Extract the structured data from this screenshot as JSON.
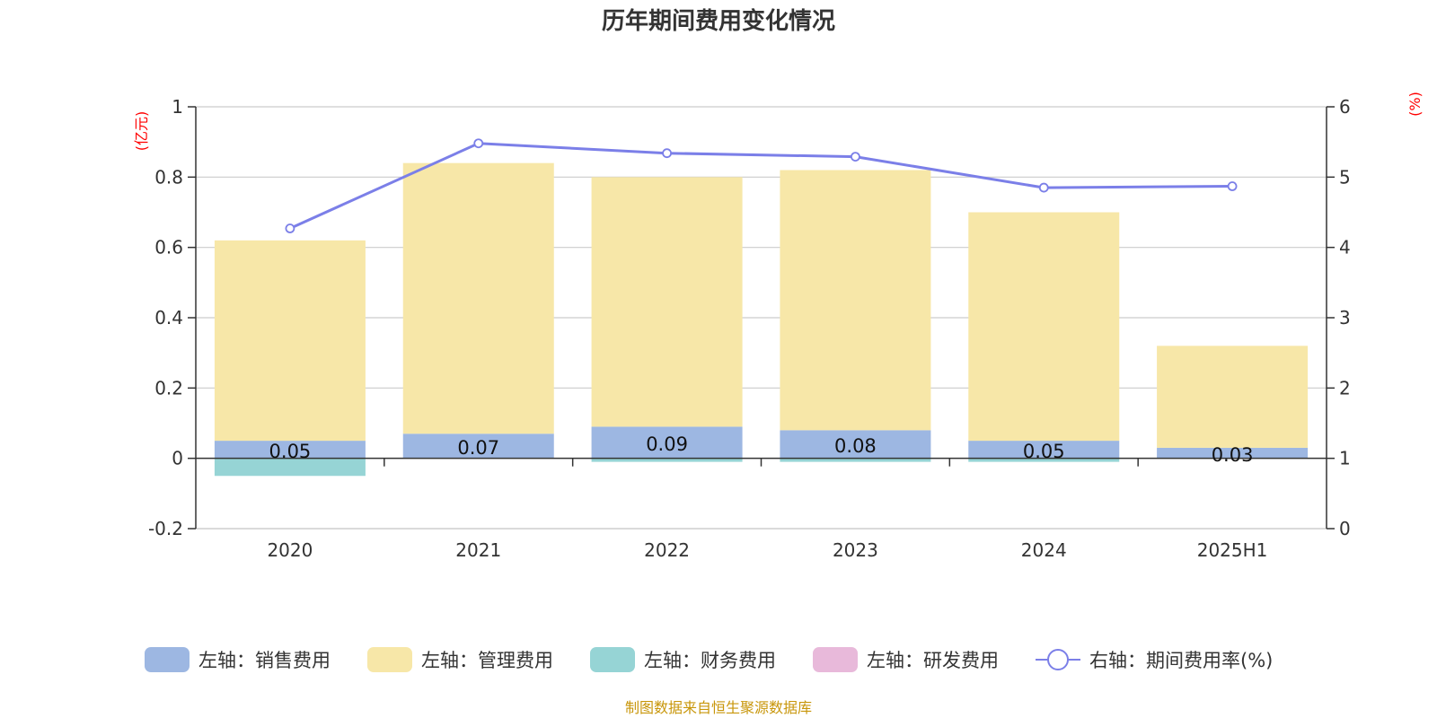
{
  "chart_data": {
    "type": "bar",
    "title": "历年期间费用变化情况",
    "categories": [
      "2020",
      "2021",
      "2022",
      "2023",
      "2024",
      "2025H1"
    ],
    "left_axis": {
      "unit": "(亿元)",
      "ylim": [
        -0.2,
        1
      ],
      "ticks": [
        "1",
        "0.8",
        "0.6",
        "0.4",
        "0.2",
        "0",
        "-0.2"
      ]
    },
    "right_axis": {
      "unit": "(%)",
      "ylim": [
        0,
        6
      ],
      "ticks": [
        "6",
        "5",
        "4",
        "3",
        "2",
        "1",
        "0"
      ]
    },
    "series": [
      {
        "name": "左轴：销售费用",
        "kind": "bar",
        "color": "#9db7e2",
        "values": [
          0.05,
          0.07,
          0.09,
          0.08,
          0.05,
          0.03
        ],
        "labels": [
          "0.05",
          "0.07",
          "0.09",
          "0.08",
          "0.05",
          "0.03"
        ]
      },
      {
        "name": "左轴：管理费用",
        "kind": "bar",
        "color": "#f7e7a8",
        "values": [
          0.57,
          0.77,
          0.71,
          0.74,
          0.65,
          0.29
        ]
      },
      {
        "name": "左轴：财务费用",
        "kind": "bar",
        "color": "#96d4d5",
        "values": [
          -0.05,
          0,
          -0.01,
          -0.01,
          -0.01,
          0
        ]
      },
      {
        "name": "左轴：研发费用",
        "kind": "bar",
        "color": "#e8b9da",
        "values": [
          0,
          0,
          0,
          0,
          0,
          0
        ]
      },
      {
        "name": "右轴：期间费用率(%)",
        "kind": "line",
        "color": "#7b7fe8",
        "values": [
          4.27,
          5.48,
          5.34,
          5.29,
          4.85,
          4.87
        ]
      }
    ],
    "grid": true,
    "legend_position": "bottom"
  },
  "source_note": "制图数据来自恒生聚源数据库"
}
